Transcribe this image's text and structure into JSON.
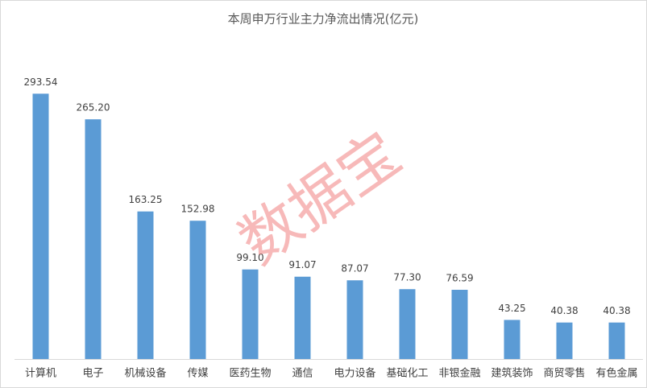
{
  "chart_data": {
    "type": "bar",
    "title": "本周申万行业主力净流出情况(亿元)",
    "categories": [
      "计算机",
      "电子",
      "机械设备",
      "传媒",
      "医药生物",
      "通信",
      "电力设备",
      "基础化工",
      "非银金融",
      "建筑装饰",
      "商贸零售",
      "有色金属"
    ],
    "values": [
      293.54,
      265.2,
      163.25,
      152.98,
      99.1,
      91.07,
      87.07,
      77.3,
      76.59,
      43.25,
      40.38,
      40.38
    ],
    "value_labels": [
      "293.54",
      "265.20",
      "163.25",
      "152.98",
      "99.10",
      "91.07",
      "87.07",
      "77.30",
      "76.59",
      "43.25",
      "40.38",
      "40.38"
    ],
    "color": "#5b9bd5",
    "ylim": [
      0,
      350
    ],
    "watermark": "数据宝"
  }
}
